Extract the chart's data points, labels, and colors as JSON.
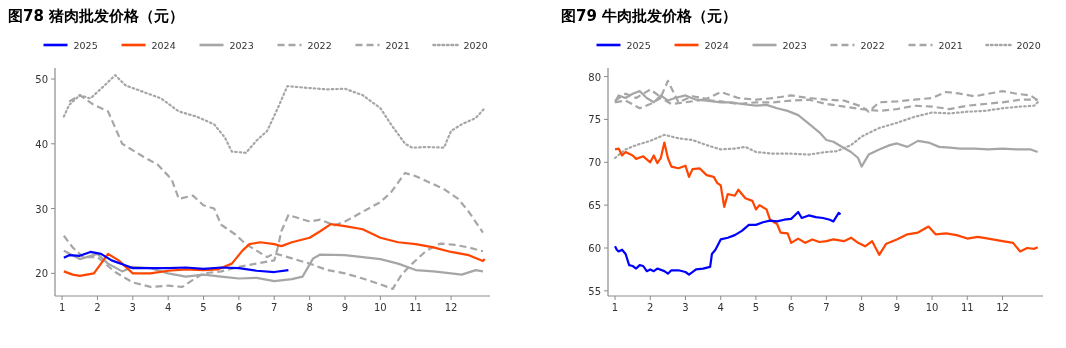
{
  "chart_data": [
    {
      "type": "line",
      "title": "图78 猪肉批发价格（元）",
      "xlim": [
        0.8,
        13.1
      ],
      "xticks": [
        1,
        2,
        3,
        4,
        5,
        6,
        7,
        8,
        9,
        10,
        11,
        12
      ],
      "ylim": [
        16.5,
        51.7
      ],
      "yticks": [
        20,
        30,
        40,
        50
      ],
      "legend": "top",
      "grid": false,
      "series": [
        {
          "name": "2025",
          "color": "#0000ff",
          "line_style": "solid",
          "x": [
            1.05,
            1.2,
            1.5,
            1.8,
            2.1,
            2.4,
            2.8,
            3,
            3.5,
            4,
            4.5,
            5,
            5.5,
            6,
            6.5,
            7,
            7.4
          ],
          "values": [
            22.4,
            22.8,
            22.7,
            23.3,
            23,
            22,
            21.2,
            20.8,
            20.8,
            20.8,
            20.9,
            20.7,
            20.9,
            20.8,
            20.4,
            20.2,
            20.5
          ]
        },
        {
          "name": "2024",
          "color": "#ff4500",
          "line_style": "solid",
          "x": [
            1.05,
            1.3,
            1.5,
            1.9,
            2.1,
            2.3,
            2.6,
            2.8,
            3,
            3.5,
            4,
            4.5,
            5,
            5.4,
            5.8,
            6.1,
            6.3,
            6.6,
            7,
            7.2,
            7.5,
            8,
            8.3,
            8.6,
            9,
            9.5,
            10,
            10.5,
            11,
            11.5,
            12,
            12.5,
            12.9,
            12.95
          ],
          "values": [
            20.3,
            19.8,
            19.6,
            20,
            21.5,
            23,
            22,
            21,
            20,
            20,
            20.4,
            20.6,
            20.5,
            20.6,
            21.5,
            23.5,
            24.5,
            24.8,
            24.5,
            24.2,
            24.8,
            25.5,
            26.5,
            27.6,
            27.3,
            26.8,
            25.5,
            24.8,
            24.5,
            24,
            23.3,
            22.8,
            21.9,
            22.2
          ]
        },
        {
          "name": "2023",
          "color": "#a6a6a6",
          "line_style": "solid",
          "x": [
            1.05,
            1.5,
            2,
            2.3,
            2.7,
            3,
            3.5,
            4,
            4.5,
            5,
            5.5,
            6,
            6.5,
            7,
            7.5,
            7.8,
            8.1,
            8.3,
            9,
            9.5,
            10,
            10.5,
            11,
            11.5,
            12,
            12.3,
            12.7,
            12.9
          ],
          "values": [
            23.5,
            22.2,
            23,
            21.5,
            20.3,
            21,
            20.8,
            20,
            19.5,
            19.8,
            19.5,
            19.2,
            19.3,
            18.8,
            19.1,
            19.5,
            22.3,
            22.9,
            22.8,
            22.5,
            22.2,
            21.5,
            20.5,
            20.3,
            20,
            19.8,
            20.5,
            20.3
          ]
        },
        {
          "name": "2022",
          "color": "#a6a6a6",
          "line_style": "dashed",
          "x": [
            1.05,
            1.3,
            1.6,
            2,
            2.5,
            3,
            3.5,
            4,
            4.4,
            4.7,
            5,
            5.5,
            6,
            6.5,
            7,
            7.1,
            7.2,
            7.4,
            7.7,
            8,
            8.3,
            8.7,
            9,
            9.5,
            10,
            10.3,
            10.7,
            11,
            11.4,
            11.8,
            12.2,
            12.5,
            12.9
          ],
          "values": [
            25.8,
            24,
            22.5,
            22.5,
            20.2,
            18.6,
            17.9,
            18.1,
            17.9,
            19,
            20,
            20.3,
            21,
            21.5,
            22,
            24,
            26.5,
            29,
            28.5,
            28,
            28.3,
            27.4,
            28,
            29.5,
            31,
            32.5,
            35.5,
            35,
            34,
            33,
            31.5,
            29.5,
            26.3
          ]
        },
        {
          "name": "2021",
          "color": "#a6a6a6",
          "line_style": "dashed",
          "x": [
            1.2,
            1.5,
            1.9,
            2.3,
            2.7,
            3.3,
            3.7,
            4.1,
            4.3,
            4.7,
            5,
            5.3,
            5.5,
            5.9,
            6.2,
            6.5,
            6.8,
            7,
            7.5,
            8,
            8.5,
            9,
            9.5,
            10,
            10.35,
            10.6,
            10.9,
            11.3,
            11.7,
            12.1,
            12.5,
            12.9
          ],
          "values": [
            46.5,
            47.5,
            46,
            45,
            40,
            38,
            36.8,
            34.5,
            31.5,
            32,
            30.5,
            30,
            27.5,
            26,
            24.5,
            23.5,
            22.5,
            23.1,
            22.3,
            21.5,
            20.5,
            20,
            19.2,
            18.3,
            17.6,
            19.8,
            21.5,
            23.5,
            24.6,
            24.4,
            24,
            23.4
          ]
        },
        {
          "name": "2020",
          "color": "#a6a6a6",
          "line_style": "dotted",
          "x": [
            1.05,
            1.2,
            1.5,
            1.8,
            2.2,
            2.5,
            2.8,
            3.3,
            3.8,
            4.3,
            4.8,
            5.3,
            5.6,
            5.8,
            6.2,
            6.5,
            6.8,
            7.1,
            7.37,
            8,
            8.5,
            9,
            9.5,
            10,
            10.3,
            10.7,
            10.9,
            11.3,
            11.8,
            12,
            12.3,
            12.7,
            12.95
          ],
          "values": [
            44.2,
            46,
            47.5,
            47,
            49,
            50.6,
            49,
            48,
            47,
            45,
            44.2,
            43,
            41,
            38.8,
            38.6,
            40.5,
            42,
            45.5,
            48.9,
            48.6,
            48.4,
            48.5,
            47.5,
            45.5,
            43,
            40,
            39.4,
            39.5,
            39.4,
            42,
            43,
            44,
            45.5
          ]
        }
      ]
    },
    {
      "type": "line",
      "title": "图79 牛肉批发价格（元）",
      "xlim": [
        0.8,
        13.15
      ],
      "xticks": [
        1,
        2,
        3,
        4,
        5,
        6,
        7,
        8,
        9,
        10,
        11,
        12
      ],
      "ylim": [
        54.4,
        81
      ],
      "yticks": [
        55,
        60,
        65,
        70,
        75,
        80
      ],
      "legend": "top",
      "grid": false,
      "series": [
        {
          "name": "2025",
          "color": "#0000ff",
          "line_style": "solid",
          "x": [
            1,
            1.05,
            1.1,
            1.2,
            1.3,
            1.4,
            1.5,
            1.6,
            1.7,
            1.8,
            1.9,
            2,
            2.1,
            2.2,
            2.4,
            2.5,
            2.6,
            2.8,
            3,
            3.1,
            3.3,
            3.5,
            3.7,
            3.75,
            3.85,
            4,
            4.2,
            4.4,
            4.6,
            4.8,
            5,
            5.2,
            5.4,
            5.6,
            5.8,
            6,
            6.1,
            6.2,
            6.3,
            6.5,
            6.7,
            6.9,
            7.1,
            7.2,
            7.35,
            7.4
          ],
          "values": [
            60.2,
            59.8,
            59.6,
            59.8,
            59.3,
            58,
            57.9,
            57.6,
            58,
            57.9,
            57.3,
            57.5,
            57.3,
            57.6,
            57.3,
            57,
            57.4,
            57.4,
            57.2,
            56.9,
            57.5,
            57.6,
            57.8,
            59.3,
            59.8,
            61,
            61.2,
            61.5,
            62,
            62.7,
            62.7,
            63,
            63.2,
            63.1,
            63.3,
            63.4,
            63.8,
            64.2,
            63.5,
            63.8,
            63.6,
            63.5,
            63.3,
            63.1,
            64.1,
            63.9
          ]
        },
        {
          "name": "2024",
          "color": "#ff4500",
          "line_style": "solid",
          "x": [
            1,
            1.1,
            1.2,
            1.3,
            1.5,
            1.6,
            1.8,
            2,
            2.1,
            2.2,
            2.3,
            2.4,
            2.5,
            2.6,
            2.8,
            3,
            3.1,
            3.2,
            3.4,
            3.6,
            3.8,
            3.9,
            4,
            4.1,
            4.2,
            4.4,
            4.5,
            4.7,
            4.9,
            5,
            5.1,
            5.3,
            5.4,
            5.6,
            5.7,
            5.9,
            6,
            6.2,
            6.4,
            6.6,
            6.8,
            7,
            7.2,
            7.5,
            7.7,
            7.9,
            8.1,
            8.3,
            8.5,
            8.7,
            9,
            9.3,
            9.6,
            9.9,
            10.1,
            10.4,
            10.7,
            11,
            11.3,
            11.6,
            12,
            12.3,
            12.5,
            12.7,
            12.9,
            13
          ],
          "values": [
            71.5,
            71.6,
            70.8,
            71.2,
            70.8,
            70.4,
            70.7,
            70,
            70.8,
            69.9,
            70.5,
            72.3,
            70.5,
            69.5,
            69.3,
            69.6,
            68.3,
            69.2,
            69.3,
            68.5,
            68.3,
            67.6,
            67.3,
            64.8,
            66.3,
            66.1,
            66.8,
            65.8,
            65.5,
            64.5,
            65,
            64.5,
            63.3,
            62.8,
            61.8,
            61.7,
            60.6,
            61.1,
            60.6,
            61,
            60.7,
            60.8,
            61,
            60.8,
            61.2,
            60.6,
            60.2,
            60.8,
            59.2,
            60.5,
            61,
            61.6,
            61.8,
            62.5,
            61.6,
            61.7,
            61.5,
            61.1,
            61.3,
            61.1,
            60.8,
            60.6,
            59.6,
            60,
            59.9,
            60.1
          ]
        },
        {
          "name": "2023",
          "color": "#a6a6a6",
          "line_style": "solid",
          "x": [
            1,
            1.1,
            1.3,
            1.5,
            1.7,
            1.9,
            2.1,
            2.3,
            2.5,
            2.7,
            3,
            3.3,
            3.6,
            4,
            4.3,
            4.6,
            5,
            5.3,
            5.6,
            5.9,
            6.2,
            6.5,
            6.8,
            7,
            7.2,
            7.4,
            7.7,
            7.9,
            8,
            8.2,
            8.5,
            8.8,
            9,
            9.3,
            9.6,
            9.9,
            10.2,
            10.5,
            10.8,
            11.2,
            11.6,
            12,
            12.4,
            12.8,
            13
          ],
          "values": [
            77,
            77.8,
            77.5,
            78,
            78.3,
            77.5,
            77,
            77.8,
            77.2,
            77.5,
            77.8,
            77.3,
            77.2,
            77,
            77,
            76.8,
            76.6,
            76.7,
            76.3,
            76,
            75.5,
            74.5,
            73.5,
            72.6,
            72.4,
            71.9,
            71.2,
            70.5,
            69.5,
            70.9,
            71.5,
            72,
            72.2,
            71.8,
            72.5,
            72.3,
            71.8,
            71.7,
            71.6,
            71.6,
            71.5,
            71.6,
            71.5,
            71.5,
            71.2
          ]
        },
        {
          "name": "2022",
          "color": "#a6a6a6",
          "line_style": "dashed",
          "x": [
            1,
            1.3,
            1.6,
            2,
            2.3,
            2.5,
            2.8,
            3.2,
            3.6,
            4,
            4.5,
            5,
            5.5,
            6,
            6.5,
            7,
            7.5,
            8,
            8.2,
            8.5,
            9,
            9.5,
            10,
            10.4,
            10.8,
            11.2,
            11.6,
            12,
            12.4,
            12.8,
            13
          ],
          "values": [
            77.2,
            78,
            77.5,
            78.5,
            77.6,
            79.5,
            77,
            77.7,
            77.4,
            78.2,
            77.5,
            77.3,
            77.5,
            77.8,
            77.5,
            77.3,
            77.2,
            76.5,
            75.9,
            77,
            77.1,
            77.3,
            77.5,
            78.2,
            78,
            77.7,
            78,
            78.3,
            78,
            77.8,
            77.2
          ]
        },
        {
          "name": "2021",
          "color": "#a6a6a6",
          "line_style": "dashed",
          "x": [
            1,
            1.3,
            1.7,
            2,
            2.3,
            2.6,
            3,
            3.5,
            4,
            4.5,
            5,
            5.5,
            6,
            6.5,
            7,
            7.5,
            8,
            8.5,
            9,
            9.5,
            10,
            10.5,
            11,
            11.5,
            12,
            12.5,
            13
          ],
          "values": [
            77,
            77.2,
            76.3,
            76.8,
            77.5,
            76.8,
            77,
            77.3,
            77.1,
            76.8,
            77,
            77,
            77.2,
            77.3,
            76.8,
            76.5,
            76.2,
            76,
            76.2,
            76.6,
            76.5,
            76.2,
            76.6,
            76.8,
            77,
            77.3,
            77.3
          ]
        },
        {
          "name": "2020",
          "color": "#a6a6a6",
          "line_style": "dotted",
          "x": [
            1,
            1.3,
            1.6,
            2,
            2.4,
            2.8,
            3.2,
            3.6,
            4,
            4.4,
            4.7,
            5,
            5.5,
            6,
            6.5,
            7,
            7.3,
            7.7,
            8,
            8.5,
            9,
            9.5,
            10,
            10.5,
            11,
            11.5,
            12,
            12.5,
            12.9,
            13
          ],
          "values": [
            70.5,
            71.5,
            72,
            72.5,
            73.2,
            72.8,
            72.6,
            72,
            71.5,
            71.6,
            71.8,
            71.2,
            71,
            71,
            70.9,
            71.2,
            71.3,
            72,
            73,
            74,
            74.6,
            75.3,
            75.8,
            75.7,
            75.9,
            76,
            76.3,
            76.5,
            76.6,
            77
          ]
        }
      ]
    }
  ]
}
